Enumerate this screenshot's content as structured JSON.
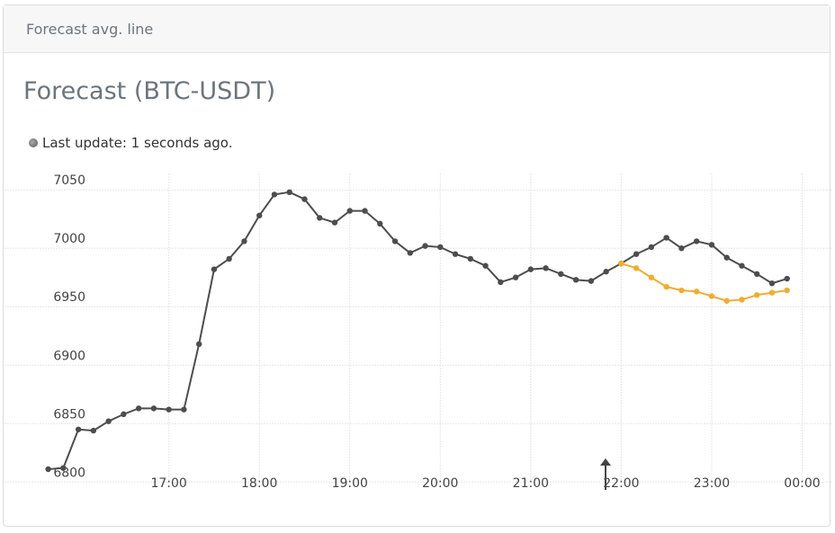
{
  "header": {
    "title": "Forecast avg. line"
  },
  "chart_data": {
    "type": "line",
    "title": "Forecast (BTC-USDT)",
    "subtitle": "Last update: 1 seconds ago.",
    "x": [
      940,
      950,
      960,
      970,
      980,
      990,
      1000,
      1010,
      1020,
      1030,
      1040,
      1050,
      1060,
      1070,
      1080,
      1090,
      1100,
      1110,
      1120,
      1130,
      1140,
      1150,
      1160,
      1170,
      1180,
      1190,
      1200,
      1210,
      1220,
      1230,
      1240,
      1250,
      1260,
      1270,
      1280,
      1290,
      1300,
      1310,
      1320,
      1330,
      1340,
      1350,
      1360,
      1370,
      1380,
      1390,
      1400,
      1410,
      1420,
      1430
    ],
    "series": [
      {
        "color": "#4d4d4d",
        "values": [
          6811,
          6812,
          6845,
          6844,
          6852,
          6858,
          6863,
          6863,
          6862,
          6862,
          6918,
          6982,
          6991,
          7006,
          7028,
          7046,
          7048,
          7042,
          7026,
          7022,
          7032,
          7032,
          7021,
          7006,
          6996,
          7002,
          7001,
          6995,
          6991,
          6985,
          6971,
          6975,
          6982,
          6983,
          6978,
          6973,
          6972,
          6980,
          6987,
          6995,
          7001,
          7009,
          7000,
          7006,
          7003,
          6992,
          6985,
          6978,
          6970,
          6974
        ]
      },
      {
        "color": "#f0ad2e",
        "values": [
          null,
          null,
          null,
          null,
          null,
          null,
          null,
          null,
          null,
          null,
          null,
          null,
          null,
          null,
          null,
          null,
          null,
          null,
          null,
          null,
          null,
          null,
          null,
          null,
          null,
          null,
          null,
          null,
          null,
          null,
          null,
          null,
          null,
          null,
          null,
          null,
          null,
          null,
          6987,
          6983,
          6975,
          6967,
          6964,
          6963,
          6959,
          6955,
          6956,
          6960,
          6962,
          6964
        ]
      }
    ],
    "xlim": [
      911,
      1460
    ],
    "xticks": [
      {
        "value": 1020,
        "label": "17:00"
      },
      {
        "value": 1080,
        "label": "18:00"
      },
      {
        "value": 1140,
        "label": "19:00"
      },
      {
        "value": 1200,
        "label": "20:00"
      },
      {
        "value": 1260,
        "label": "21:00"
      },
      {
        "value": 1320,
        "label": "22:00"
      },
      {
        "value": 1380,
        "label": "23:00"
      },
      {
        "value": 1440,
        "label": "00:00"
      }
    ],
    "ylim": [
      6781,
      7064
    ],
    "yticks": [
      6800,
      6850,
      6900,
      6950,
      7000,
      7050
    ],
    "grid": true
  }
}
